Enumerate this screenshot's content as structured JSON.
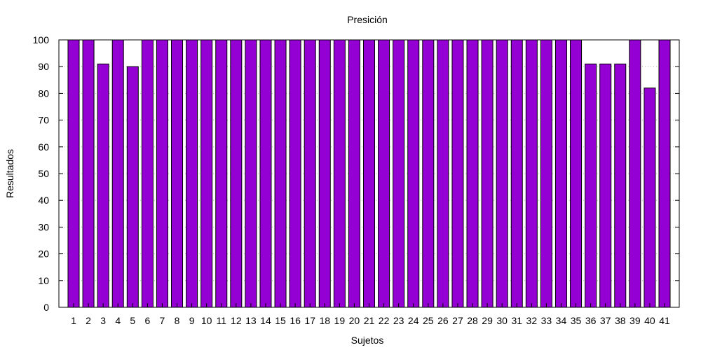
{
  "chart_data": {
    "type": "bar",
    "title": "Presición",
    "xlabel": "Sujetos",
    "ylabel": "Resultados",
    "ylim": [
      0,
      100
    ],
    "yticks": [
      0,
      10,
      20,
      30,
      40,
      50,
      60,
      70,
      80,
      90,
      100
    ],
    "grid": true,
    "bar_color": "#9400d3",
    "categories": [
      "1",
      "2",
      "3",
      "4",
      "5",
      "6",
      "7",
      "8",
      "9",
      "10",
      "11",
      "12",
      "13",
      "14",
      "15",
      "16",
      "17",
      "18",
      "19",
      "20",
      "21",
      "22",
      "23",
      "24",
      "25",
      "26",
      "27",
      "28",
      "29",
      "30",
      "31",
      "32",
      "33",
      "34",
      "35",
      "36",
      "37",
      "38",
      "39",
      "40",
      "41"
    ],
    "values": [
      100,
      100,
      91,
      100,
      90,
      100,
      100,
      100,
      100,
      100,
      100,
      100,
      100,
      100,
      100,
      100,
      100,
      100,
      100,
      100,
      100,
      100,
      100,
      100,
      100,
      100,
      100,
      100,
      100,
      100,
      100,
      100,
      100,
      100,
      100,
      91,
      91,
      91,
      100,
      82,
      100
    ]
  }
}
